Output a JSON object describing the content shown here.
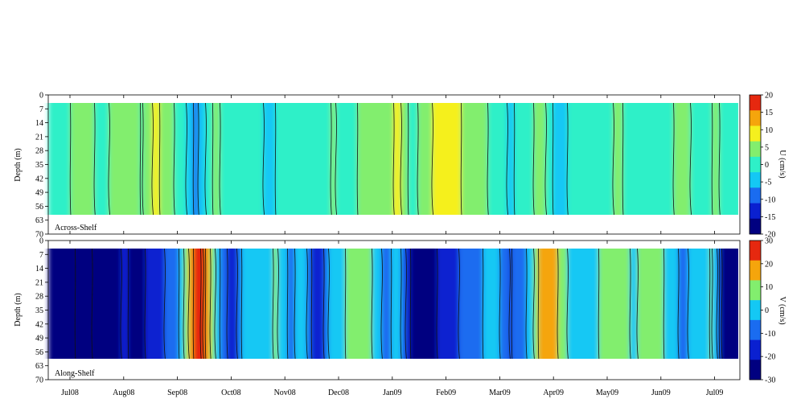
{
  "chart_data": [
    {
      "type": "heatmap",
      "panel_label": "Across-Shelf",
      "ylabel": "Depth (m)",
      "y_ticks": [
        "0",
        "7",
        "14",
        "21",
        "28",
        "35",
        "42",
        "49",
        "56",
        "63",
        "70"
      ],
      "ylim": [
        0,
        70
      ],
      "y_inverted": true,
      "data_depth_range": [
        3,
        63
      ],
      "colorbar_label": "U (cm/s)",
      "colorbar_ticks": [
        "20",
        "15",
        "10",
        "5",
        "0",
        "-5",
        "-10",
        "-15",
        "-20"
      ],
      "colorbar_range": [
        -20,
        20
      ],
      "colors": [
        "#000080",
        "#0a20d0",
        "#1a6cf0",
        "#14c8f4",
        "#2ef0c8",
        "#82ee6e",
        "#f5f01e",
        "#f5a50c",
        "#e6280f"
      ],
      "profile_months": [
        0.0,
        0.3,
        0.55,
        0.8,
        1.1,
        1.35,
        1.6,
        1.85,
        2.1,
        2.35,
        2.7,
        3.0,
        3.3,
        3.7,
        4.0,
        4.5,
        4.9,
        5.2,
        5.5,
        5.8,
        6.1,
        6.35,
        6.7,
        7.0,
        7.4,
        7.8,
        8.2,
        8.5,
        8.8,
        9.1,
        9.45,
        9.8,
        10.2,
        10.6,
        11.0,
        11.4,
        11.75,
        12.0,
        12.3,
        12.6,
        12.9
      ],
      "profile_values": [
        2,
        6,
        0,
        3,
        4,
        2,
        8,
        3,
        0,
        -8,
        3,
        0,
        2,
        -4,
        1,
        -2,
        3,
        -1,
        5,
        2,
        8,
        0,
        6,
        11,
        5,
        2,
        -3,
        1,
        4,
        -5,
        2,
        0,
        3,
        -1,
        0,
        4,
        -1,
        3,
        0,
        2,
        5
      ]
    },
    {
      "type": "heatmap",
      "panel_label": "Along-Shelf",
      "ylabel": "Depth (m)",
      "y_ticks": [
        "0",
        "7",
        "14",
        "21",
        "28",
        "35",
        "42",
        "49",
        "56",
        "63",
        "70"
      ],
      "ylim": [
        0,
        70
      ],
      "y_inverted": true,
      "data_depth_range": [
        3,
        63
      ],
      "colorbar_label": "V (cm/s)",
      "colorbar_ticks": [
        "30",
        "20",
        "10",
        "0",
        "-10",
        "-20",
        "-30"
      ],
      "colorbar_range": [
        -30,
        30
      ],
      "colors": [
        "#000080",
        "#0a20d0",
        "#1a6cf0",
        "#14c8f4",
        "#82ee6e",
        "#f5a50c",
        "#e6280f"
      ],
      "profile_months": [
        0.0,
        0.15,
        0.4,
        0.7,
        1.0,
        1.3,
        1.6,
        1.9,
        2.1,
        2.3,
        2.45,
        2.6,
        2.8,
        3.0,
        3.3,
        3.6,
        3.85,
        4.1,
        4.35,
        4.6,
        4.85,
        5.1,
        5.5,
        5.9,
        6.1,
        6.4,
        6.8,
        7.2,
        7.6,
        7.9,
        8.2,
        8.45,
        8.6,
        8.75,
        8.95,
        9.2,
        9.5,
        9.8,
        10.2,
        10.5,
        10.8,
        11.1,
        11.4,
        11.7,
        11.95,
        12.2,
        12.6,
        12.9
      ],
      "profile_values": [
        -25,
        -35,
        -30,
        -28,
        -20,
        -25,
        -14,
        -12,
        2,
        24,
        32,
        14,
        -5,
        -20,
        2,
        0,
        6,
        -8,
        3,
        -22,
        0,
        4,
        10,
        -10,
        2,
        -28,
        -22,
        -14,
        -6,
        2,
        -14,
        -6,
        0,
        14,
        22,
        5,
        0,
        4,
        10,
        3,
        12,
        2,
        -6,
        0,
        5,
        -28,
        -20,
        -10
      ]
    }
  ],
  "x_axis": {
    "tick_labels": [
      "Jul08",
      "Aug08",
      "Sep08",
      "Oct08",
      "Nov08",
      "Dec08",
      "Jan09",
      "Feb09",
      "Mar09",
      "Apr09",
      "May09",
      "Jun09",
      "Jul09"
    ]
  }
}
